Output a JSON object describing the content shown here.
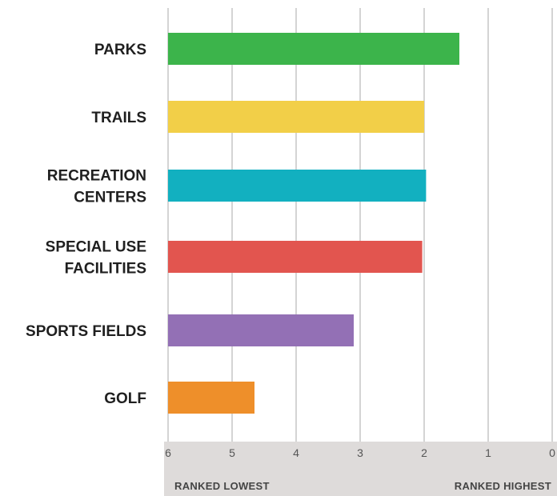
{
  "chart_data": {
    "type": "bar",
    "orientation": "horizontal",
    "categories": [
      [
        "PARKS"
      ],
      [
        "TRAILS"
      ],
      [
        "RECREATION",
        "CENTERS"
      ],
      [
        "SPECIAL USE",
        "FACILITIES"
      ],
      [
        "SPORTS FIELDS"
      ],
      [
        "GOLF"
      ]
    ],
    "values": [
      1.45,
      2.0,
      1.97,
      2.03,
      3.1,
      4.65
    ],
    "colors": [
      "#3cb44b",
      "#f2cf48",
      "#12b0c0",
      "#e2554f",
      "#9370b5",
      "#ee8f2a"
    ],
    "xlim": [
      6,
      0
    ],
    "x_reversed": true,
    "ticks": [
      "6",
      "5",
      "4",
      "3",
      "2",
      "1",
      "0"
    ],
    "axis_end_labels": {
      "left": "RANKED LOWEST",
      "right": "RANKED HIGHEST"
    },
    "grid": true,
    "grid_color": "#d4d4d4",
    "axis_band_color": "#dedbda",
    "title": "",
    "xlabel": "",
    "ylabel": ""
  }
}
